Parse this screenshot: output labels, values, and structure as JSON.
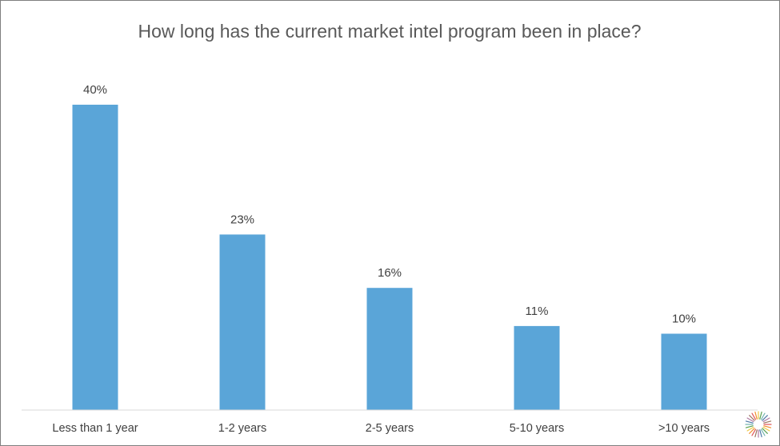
{
  "chart_data": {
    "type": "bar",
    "title": "How long has the current market intel program been in place?",
    "categories": [
      "Less than 1 year",
      "1-2 years",
      "2-5 years",
      "5-10 years",
      ">10 years"
    ],
    "values": [
      40,
      23,
      16,
      11,
      10
    ],
    "data_labels": [
      "40%",
      "23%",
      "16%",
      "11%",
      "10%"
    ],
    "xlabel": "",
    "ylabel": "",
    "ylim": [
      0,
      40
    ],
    "grid": false,
    "legend": "none",
    "colors": {
      "bar": "#5aa5d8",
      "axis": "#d9d9d9",
      "text": "#404040",
      "title": "#595959"
    }
  },
  "logo": {
    "name": "sunburst-logo-icon",
    "colors": [
      "#e15759",
      "#f28e2b",
      "#edc948",
      "#59a14f",
      "#76b7b2",
      "#4e79a7",
      "#b07aa1",
      "#9c755f"
    ]
  }
}
